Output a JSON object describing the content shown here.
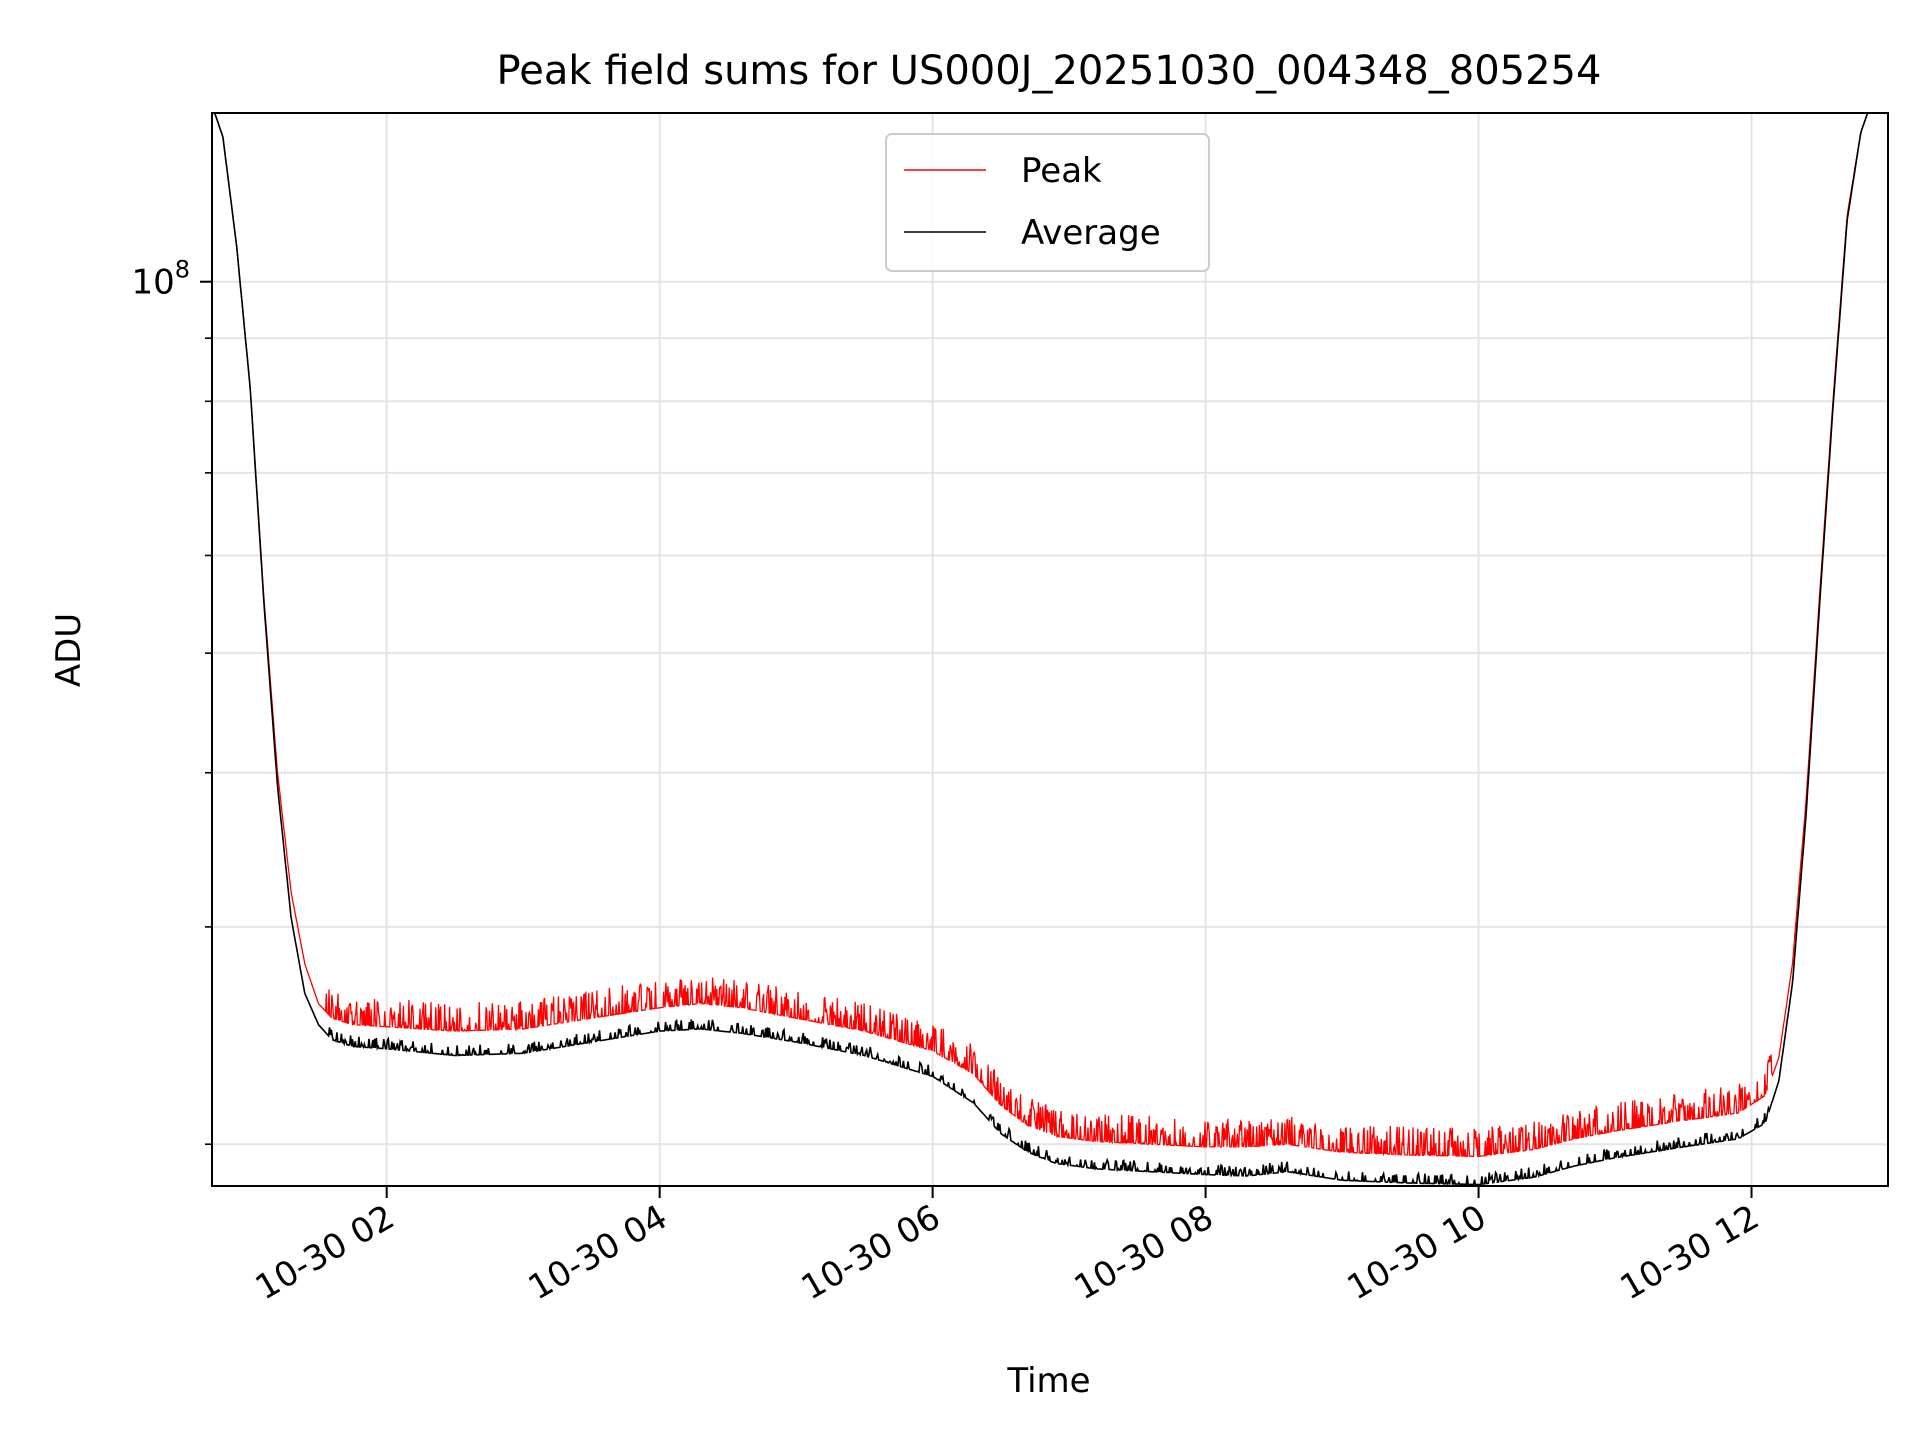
{
  "chart_data": {
    "type": "line",
    "title": "Peak field sums for US000J_20251030_004348_805254",
    "xlabel": "Time",
    "ylabel": "ADU",
    "y_scale": "log",
    "ylim": [
      18500000,
      137000000
    ],
    "y_major_ticks": [
      {
        "value": 100000000,
        "base": "10",
        "exp": "8"
      }
    ],
    "y_minor_ticks": [
      20000000,
      30000000,
      40000000,
      50000000,
      60000000,
      70000000,
      80000000,
      90000000,
      200000000
    ],
    "xlim_hours": [
      0.72,
      13.0
    ],
    "x_ticks": [
      {
        "hour": 2,
        "label": "10-30 02"
      },
      {
        "hour": 4,
        "label": "10-30 04"
      },
      {
        "hour": 6,
        "label": "10-30 06"
      },
      {
        "hour": 8,
        "label": "10-30 08"
      },
      {
        "hour": 10,
        "label": "10-30 10"
      },
      {
        "hour": 12,
        "label": "10-30 12"
      }
    ],
    "grid": true,
    "legend": {
      "position": "upper center"
    },
    "series": [
      {
        "name": "Average",
        "color": "#000000",
        "hours": [
          0.74,
          0.8,
          0.9,
          1.0,
          1.1,
          1.2,
          1.3,
          1.4,
          1.5,
          1.6,
          1.75,
          2.0,
          2.5,
          3.0,
          3.5,
          4.0,
          4.3,
          4.6,
          5.0,
          5.5,
          6.0,
          6.3,
          6.5,
          6.7,
          6.9,
          7.2,
          7.6,
          8.0,
          8.3,
          8.6,
          9.0,
          9.5,
          10.0,
          10.4,
          10.7,
          11.0,
          11.5,
          11.9,
          12.1,
          12.2,
          12.3,
          12.4,
          12.5,
          12.6,
          12.7,
          12.8,
          12.85
        ],
        "values": [
          137000000,
          131000000,
          107000000,
          82000000,
          55000000,
          39000000,
          30500000,
          26500000,
          25000000,
          24300000,
          24000000,
          23900000,
          23600000,
          23700000,
          24200000,
          24700000,
          24800000,
          24600000,
          24200000,
          23600000,
          22700000,
          21600000,
          20400000,
          19700000,
          19300000,
          19100000,
          19000000,
          18900000,
          18850000,
          19000000,
          18700000,
          18600000,
          18550000,
          18800000,
          19200000,
          19500000,
          19900000,
          20200000,
          20800000,
          22500000,
          27000000,
          37000000,
          55000000,
          80000000,
          112000000,
          132000000,
          137000000
        ]
      },
      {
        "name": "Peak",
        "color": "#ff0000",
        "hours": [
          0.74,
          0.8,
          0.9,
          1.0,
          1.1,
          1.2,
          1.3,
          1.4,
          1.5,
          1.6,
          1.75,
          2.0,
          2.5,
          3.0,
          3.5,
          4.0,
          4.3,
          4.6,
          5.0,
          5.5,
          6.0,
          6.3,
          6.5,
          6.7,
          6.9,
          7.2,
          7.6,
          8.0,
          8.3,
          8.6,
          9.0,
          9.5,
          10.0,
          10.4,
          10.7,
          11.0,
          11.5,
          11.9,
          12.1,
          12.2,
          12.3,
          12.4,
          12.5,
          12.6,
          12.7,
          12.8,
          12.85
        ],
        "values": [
          137000000,
          131000000,
          107000000,
          82000000,
          55500000,
          40000000,
          32000000,
          28000000,
          26000000,
          25300000,
          25000000,
          24900000,
          24700000,
          24800000,
          25300000,
          25800000,
          26000000,
          25800000,
          25300000,
          24700000,
          23800000,
          22800000,
          21500000,
          20700000,
          20300000,
          20100000,
          20000000,
          19900000,
          19900000,
          20000000,
          19700000,
          19600000,
          19550000,
          19800000,
          20200000,
          20500000,
          20900000,
          21200000,
          21900000,
          23500000,
          28000000,
          38000000,
          56000000,
          81000000,
          113000000,
          132000000,
          137000000
        ],
        "noise_amplitude": 0.055
      }
    ]
  }
}
